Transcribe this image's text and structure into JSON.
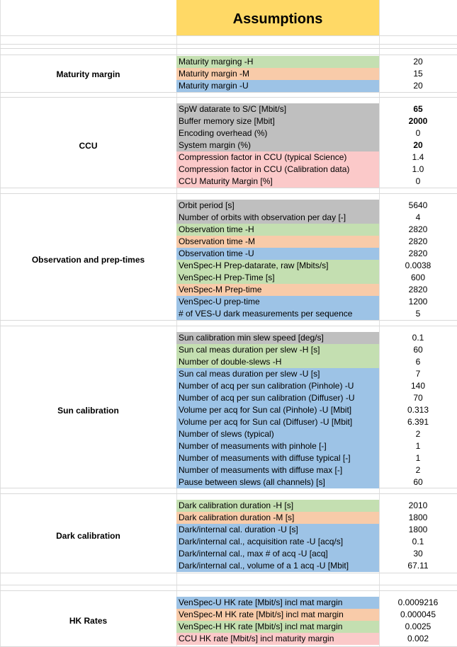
{
  "title": "Assumptions",
  "sections": [
    {
      "name": "Maturity margin",
      "rows": [
        {
          "label": "Maturity marging -H",
          "value": "20",
          "color": "green"
        },
        {
          "label": "Maturity margin -M",
          "value": "15",
          "color": "orange"
        },
        {
          "label": "Maturity margin -U",
          "value": "20",
          "color": "blue"
        }
      ]
    },
    {
      "name": "CCU",
      "rows": [
        {
          "label": "SpW datarate to S/C [Mbit/s]",
          "value": "65",
          "color": "gray",
          "bold": true
        },
        {
          "label": "Buffer memory size [Mbit]",
          "value": "2000",
          "color": "gray",
          "bold": true
        },
        {
          "label": "Encoding overhead (%)",
          "value": "0",
          "color": "gray"
        },
        {
          "label": "System margin (%)",
          "value": "20",
          "color": "gray",
          "bold": true
        },
        {
          "label": "Compression factor in CCU (typical Science)",
          "value": "1.4",
          "color": "pink"
        },
        {
          "label": "Compression factor in CCU (Calibration data)",
          "value": "1.0",
          "color": "pink"
        },
        {
          "label": "CCU Maturity Margin [%]",
          "value": "0",
          "color": "pink"
        }
      ]
    },
    {
      "name": "Observation and prep-times",
      "rows": [
        {
          "label": "Orbit period [s]",
          "value": "5640",
          "color": "gray"
        },
        {
          "label": "Number of orbits with observation per day [-]",
          "value": "4",
          "color": "gray"
        },
        {
          "label": "Observation time -H",
          "value": "2820",
          "color": "green"
        },
        {
          "label": "Observation time -M",
          "value": "2820",
          "color": "orange"
        },
        {
          "label": "Observation time -U",
          "value": "2820",
          "color": "blue"
        },
        {
          "label": "VenSpec-H Prep-datarate, raw [Mbits/s]",
          "value": "0.0038",
          "color": "green"
        },
        {
          "label": "VenSpec-H Prep-Time [s]",
          "value": "600",
          "color": "green"
        },
        {
          "label": "VenSpec-M Prep-time",
          "value": "2820",
          "color": "orange"
        },
        {
          "label": "VenSpec-U prep-time",
          "value": "1200",
          "color": "blue"
        },
        {
          "label": "# of VES-U dark measurements per sequence",
          "value": "5",
          "color": "blue"
        }
      ]
    },
    {
      "name": "Sun calibration",
      "rows": [
        {
          "label": "Sun calibration min slew speed [deg/s]",
          "value": "0.1",
          "color": "gray"
        },
        {
          "label": "Sun cal meas duration per slew  -H [s]",
          "value": "60",
          "color": "green"
        },
        {
          "label": "Number of double-slews -H",
          "value": "6",
          "color": "green"
        },
        {
          "label": "Sun cal  meas duration per slew -U [s]",
          "value": "7",
          "color": "blue"
        },
        {
          "label": "Number of acq per sun calibration (Pinhole) -U",
          "value": "140",
          "color": "blue"
        },
        {
          "label": "Number of acq per sun calibration (Diffuser) -U",
          "value": "70",
          "color": "blue"
        },
        {
          "label": "Volume per acq for Sun cal (Pinhole) -U  [Mbit]",
          "value": "0.313",
          "color": "blue"
        },
        {
          "label": "Volume per acq for Sun cal (Diffuser) -U [Mbit]",
          "value": "6.391",
          "color": "blue"
        },
        {
          "label": "Number of slews (typical)",
          "value": "2",
          "color": "blue"
        },
        {
          "label": "Number of measuments with pinhole [-]",
          "value": "1",
          "color": "blue"
        },
        {
          "label": "Number of measuments with diffuse typical [-]",
          "value": "1",
          "color": "blue"
        },
        {
          "label": "Number of measuments with diffuse max [-]",
          "value": "2",
          "color": "blue"
        },
        {
          "label": "Pause between slews (all channels) [s]",
          "value": "60",
          "color": "blue"
        }
      ]
    },
    {
      "name": "Dark calibration",
      "rows": [
        {
          "label": "Dark calibration duration -H [s]",
          "value": "2010",
          "color": "green"
        },
        {
          "label": "Dark calibration duration -M [s]",
          "value": "1800",
          "color": "orange"
        },
        {
          "label": "Dark/internal cal. duration -U [s]",
          "value": "1800",
          "color": "blue"
        },
        {
          "label": "Dark/internal cal., acquisition rate -U [acq/s]",
          "value": "0.1",
          "color": "blue"
        },
        {
          "label": "Dark/internal cal., max # of acq -U [acq]",
          "value": "30",
          "color": "blue"
        },
        {
          "label": "Dark/internal cal., volume of a 1 acq -U [Mbit]",
          "value": "67.11",
          "color": "blue"
        }
      ]
    },
    {
      "name": "HK Rates",
      "rows": [
        {
          "label": "VenSpec-U HK rate [Mbit/s] incl mat margin",
          "value": "0.0009216",
          "color": "blue"
        },
        {
          "label": "VenSpec-M HK rate [Mbit/s] incl mat margin",
          "value": "0.000045",
          "color": "orange"
        },
        {
          "label": "VenSpec-H HK rate [Mbit/s] incl mat margin",
          "value": "0.0025",
          "color": "green"
        },
        {
          "label": "CCU HK rate [Mbit/s] incl maturity margin",
          "value": "0.002",
          "color": "pink"
        }
      ]
    }
  ]
}
